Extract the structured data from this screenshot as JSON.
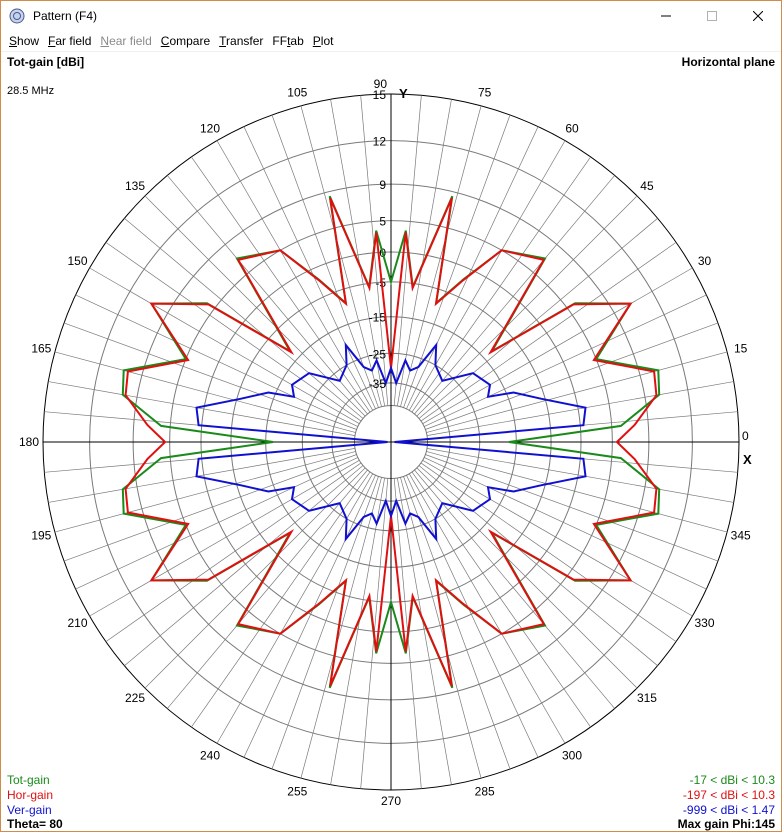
{
  "window": {
    "title": "Pattern   (F4)",
    "min_icon": "minimize-icon",
    "max_icon": "maximize-icon",
    "close_icon": "close-icon"
  },
  "menu": [
    {
      "label": "Show",
      "ul": "S",
      "rest": "how",
      "enabled": true
    },
    {
      "label": "Far field",
      "ul": "F",
      "rest": "ar field",
      "enabled": true
    },
    {
      "label": "Near field",
      "ul": "N",
      "rest": "ear field",
      "enabled": false
    },
    {
      "label": "Compare",
      "ul": "C",
      "rest": "ompare",
      "enabled": true
    },
    {
      "label": "Transfer",
      "ul": "T",
      "rest": "ransfer",
      "enabled": true
    },
    {
      "label": "FFtab",
      "pre": "FF",
      "ul": "t",
      "rest": "ab",
      "enabled": true
    },
    {
      "label": "Plot",
      "ul": "P",
      "rest": "lot",
      "enabled": true
    }
  ],
  "plot": {
    "top_left": "Tot-gain [dBi]",
    "frequency": "28.5 MHz",
    "top_right": "Horizontal plane",
    "axis_x": "X",
    "axis_y": "Y",
    "angle_labels": [
      "0",
      "15",
      "30",
      "45",
      "60",
      "75",
      "90",
      "105",
      "120",
      "135",
      "150",
      "165",
      "180",
      "195",
      "210",
      "225",
      "240",
      "255",
      "270",
      "285",
      "300",
      "315",
      "330",
      "345"
    ],
    "ring_labels": [
      "15",
      "12",
      "9",
      "5",
      "0",
      "-5",
      "-15",
      "-25",
      "-35"
    ],
    "legend": {
      "tot": "Tot-gain",
      "hor": "Hor-gain",
      "ver": "Ver-gain"
    },
    "ranges": {
      "tot": "-17 < dBi < 10.3",
      "hor": "-197 < dBi < 10.3",
      "ver": "-999 < dBi < 1.47"
    },
    "theta": "Theta= 80",
    "max_gain": "Max gain Phi:145",
    "colors": {
      "tot": "#1a8a1a",
      "hor": "#e01010",
      "ver": "#1010d0",
      "grid": "#7a7a7a",
      "axis": "#000000"
    }
  },
  "chart_data": {
    "type": "line",
    "subtype": "polar",
    "title": "Horizontal plane",
    "radial_unit": "dBi",
    "radial_ticks": [
      15,
      12,
      9,
      5,
      0,
      -5,
      -15,
      -25,
      -35
    ],
    "angle_ticks_deg": [
      0,
      15,
      30,
      45,
      60,
      75,
      90,
      105,
      120,
      135,
      150,
      165,
      180,
      195,
      210,
      225,
      240,
      255,
      270,
      285,
      300,
      315,
      330,
      345
    ],
    "series": [
      {
        "name": "Tot-gain",
        "color": "#1a8a1a",
        "symmetric_pattern": true,
        "angles_deg": [
          0,
          4,
          10,
          15,
          22,
          30,
          37,
          42,
          50,
          60,
          66,
          72,
          76,
          82,
          86,
          90
        ],
        "values_dbi": [
          -17,
          6,
          10,
          10.3,
          5,
          10.3,
          6,
          -12,
          7,
          5,
          -2,
          -9,
          8.5,
          -6,
          3.5,
          -5
        ]
      },
      {
        "name": "Hor-gain",
        "color": "#e01010",
        "symmetric_pattern": true,
        "angles_deg": [
          0,
          4,
          10,
          15,
          22,
          30,
          37,
          42,
          50,
          60,
          66,
          72,
          76,
          82,
          86,
          90
        ],
        "values_dbi": [
          5.5,
          7.5,
          9.8,
          10,
          4.6,
          10.3,
          5.8,
          -12.5,
          6.8,
          5,
          -2.2,
          -9.2,
          8.3,
          -6.3,
          3.2,
          -30
        ]
      },
      {
        "name": "Ver-gain",
        "color": "#1010d0",
        "symmetric_pattern": true,
        "angles_deg": [
          0,
          5,
          10,
          16,
          22,
          25,
          30,
          40,
          50,
          60,
          65,
          70,
          75,
          80,
          85,
          90
        ],
        "values_dbi": [
          -999,
          0.5,
          1.2,
          -6,
          -13,
          -20,
          -18,
          -20,
          -28,
          -25,
          -20,
          -28,
          -30,
          -27,
          -35,
          -30
        ]
      }
    ]
  }
}
